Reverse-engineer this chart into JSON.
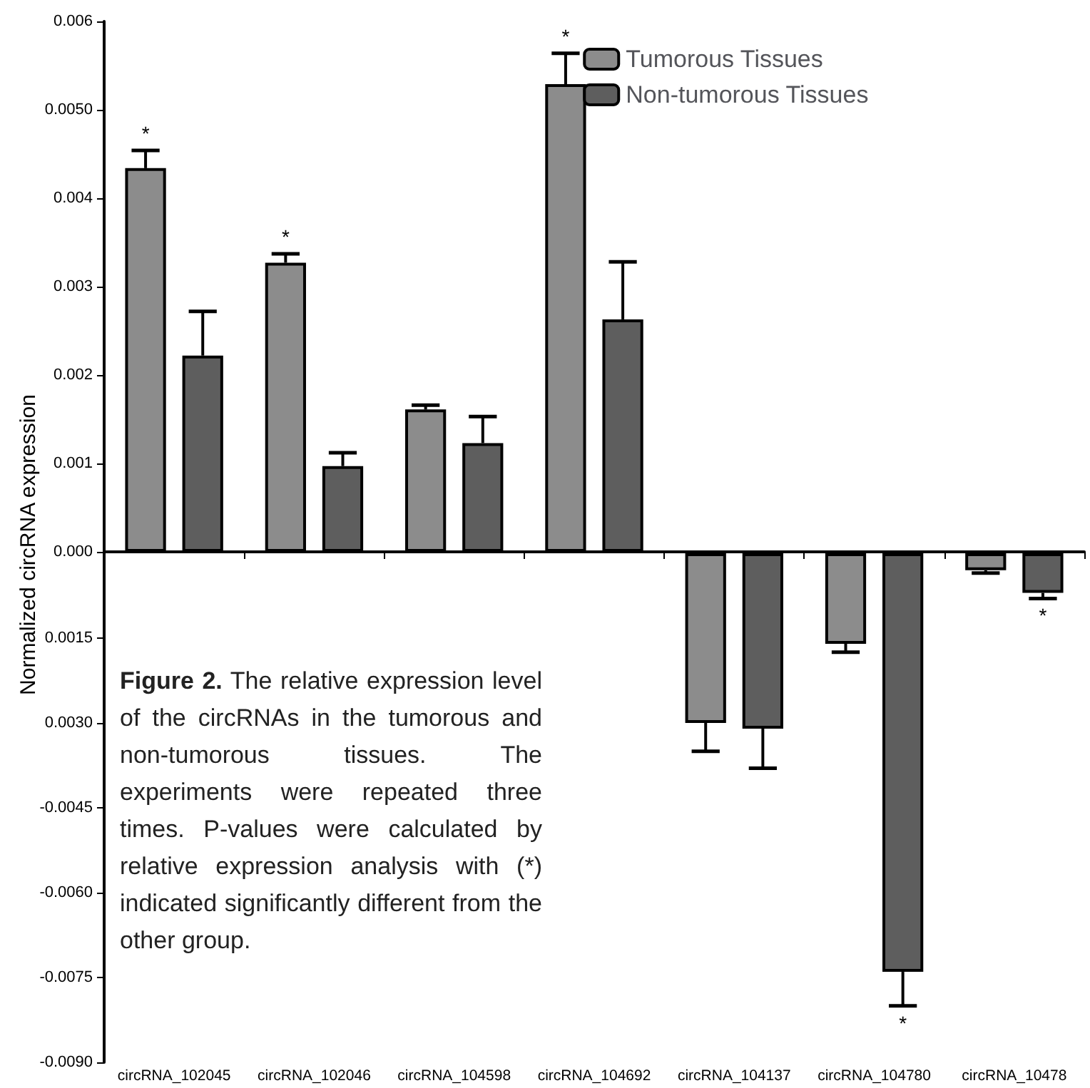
{
  "chart_data": [
    {
      "type": "bar",
      "ylabel": "Normalized circRNA expression",
      "categories": [
        null,
        null,
        null,
        null,
        null,
        null,
        null
      ],
      "series": [
        {
          "name": "Tumorous Tissues",
          "color": "#8c8c8c",
          "values": [
            0.00434,
            0.00327,
            0.00161,
            0.00529,
            null,
            null,
            null
          ],
          "errors": [
            0.0002,
            0.0001,
            5e-05,
            0.00035,
            null,
            null,
            null
          ],
          "value_labels": [
            "*",
            "*",
            null,
            "*",
            null,
            null,
            null
          ]
        },
        {
          "name": "Non-tumorous Tissues",
          "color": "#5e5e5e",
          "values": [
            0.00222,
            0.00097,
            0.00123,
            0.00263,
            null,
            null,
            null
          ],
          "errors": [
            0.0005,
            0.00015,
            0.0003,
            0.00065,
            null,
            null,
            null
          ]
        }
      ],
      "ylim": [
        0,
        0.006
      ],
      "yticks": [
        {
          "value": 0,
          "label": "0.000"
        },
        0.001,
        0.002,
        0.003,
        0.004,
        {
          "value": 0.005,
          "label": "0.0050"
        },
        0.006
      ],
      "legend": "top right",
      "tick_labels": "y",
      "grid": false
    },
    {
      "type": "bar",
      "categories": [
        "circRNA_102045",
        "circRNA_102046",
        "circRNA_104598",
        "circRNA_104692",
        "circRNA_104137",
        "circRNA_104780",
        "circRNA_10478"
      ],
      "series": [
        {
          "color": "#8c8c8c",
          "values": [
            null,
            null,
            null,
            null,
            -0.003,
            -0.0016,
            -0.0003
          ],
          "errors": [
            null,
            null,
            null,
            null,
            0.0005,
            0.00015,
            5e-05
          ]
        },
        {
          "color": "#5e5e5e",
          "values": [
            null,
            null,
            null,
            null,
            -0.0031,
            -0.0074,
            -0.0007
          ],
          "errors": [
            null,
            null,
            null,
            null,
            0.0007,
            0.0006,
            0.0001
          ],
          "value_labels": [
            null,
            null,
            null,
            null,
            null,
            "*",
            "*"
          ]
        }
      ],
      "ylim": [
        -0.009,
        0
      ],
      "yticks": [
        {
          "value": -0.0015,
          "label": "0.0015"
        },
        {
          "value": -0.003,
          "label": "0.0030"
        },
        -0.0045,
        {
          "value": -0.006,
          "label": "-0.0060"
        },
        -0.0075,
        {
          "value": -0.009,
          "label": "-0.0090"
        }
      ],
      "annotations": [
        "Figure 2. The relative expression level of the circRNAs in the tumorous and non-tumorous tissues. The experiments were repeated three times. P-values were calculated by relative expression analysis with (*) indicated significantly different from the other group."
      ],
      "grid": false
    }
  ]
}
